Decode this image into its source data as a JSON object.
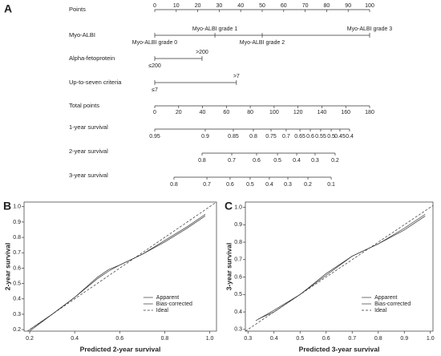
{
  "chart_data": [
    {
      "type": "nomogram",
      "panel": "A",
      "points_axis": {
        "name": "Points",
        "xlim": [
          0,
          100
        ],
        "ticks": [
          0,
          10,
          20,
          30,
          40,
          50,
          60,
          70,
          80,
          90,
          100
        ]
      },
      "variables": [
        {
          "name": "Myo-ALBI",
          "levels": [
            "Myo-ALBI grade 0",
            "Myo-ALBI grade 1",
            "Myo-ALBI grade 2",
            "Myo-ALBI grade 3"
          ],
          "points": [
            0,
            28,
            50,
            100
          ]
        },
        {
          "name": "Alpha-fetoprotein",
          "levels": [
            "≤200",
            ">200"
          ],
          "points": [
            0,
            22
          ]
        },
        {
          "name": "Up-to-seven criteria",
          "levels": [
            "≤7",
            ">7"
          ],
          "points": [
            0,
            38
          ]
        }
      ],
      "total_axis": {
        "name": "Total points",
        "xlim": [
          0,
          180
        ],
        "ticks": [
          0,
          20,
          40,
          60,
          80,
          100,
          120,
          140,
          160,
          180
        ]
      },
      "outcomes": [
        {
          "name": "1-year survival",
          "labels": [
            "0.95",
            "0.9",
            "0.85",
            "0.8",
            "0.75",
            "0.7",
            "0.65",
            "0.6",
            "0.55",
            "0.5",
            "0.45",
            "0.4"
          ],
          "total_points": [
            0,
            42.3,
            65.8,
            82.6,
            97.4,
            110.1,
            121.6,
            130.3,
            139.0,
            147.8,
            155.1,
            163.2
          ]
        },
        {
          "name": "2-year survival",
          "labels": [
            "0.8",
            "0.7",
            "0.6",
            "0.5",
            "0.4",
            "0.3",
            "0.2"
          ],
          "total_points": [
            39.6,
            64.5,
            85.3,
            102.8,
            118.9,
            134.3,
            151.1
          ]
        },
        {
          "name": "3-year survival",
          "labels": [
            "0.8",
            "0.7",
            "0.6",
            "0.5",
            "0.4",
            "0.3",
            "0.2",
            "0.1"
          ],
          "total_points": [
            16.1,
            43.7,
            63.1,
            79.9,
            96.0,
            111.5,
            128.3,
            147.8
          ]
        }
      ]
    },
    {
      "type": "line",
      "panel": "B",
      "xlabel": "Predicted 2-year survival",
      "ylabel": "2-year survival",
      "xlim": [
        0.175,
        1.03
      ],
      "ylim": [
        0.19,
        1.03
      ],
      "xticks": [
        0.2,
        0.4,
        0.6,
        0.8,
        {
          "value": 1,
          "label": "1.0"
        }
      ],
      "yticks": [
        0.2,
        0.3,
        0.4,
        0.5,
        0.6,
        0.7,
        0.8,
        0.9,
        {
          "value": 1,
          "label": "1.0"
        }
      ],
      "legend": "lower right",
      "series": [
        {
          "name": "Apparent",
          "color": "#a8a8a8",
          "linestyle": "solid",
          "x": [
            0.2,
            0.3,
            0.4,
            0.5,
            0.55,
            0.6,
            0.7,
            0.8,
            0.9,
            0.98
          ],
          "values": [
            0.2,
            0.3,
            0.41,
            0.53,
            0.58,
            0.62,
            0.69,
            0.78,
            0.87,
            0.95
          ]
        },
        {
          "name": "Bias-corrected",
          "color": "#444444",
          "linestyle": "solid",
          "x": [
            0.2,
            0.3,
            0.4,
            0.5,
            0.55,
            0.6,
            0.7,
            0.8,
            0.9,
            0.98
          ],
          "values": [
            0.19,
            0.3,
            0.41,
            0.54,
            0.59,
            0.62,
            0.69,
            0.77,
            0.86,
            0.94
          ]
        },
        {
          "name": "Ideal",
          "color": "#555555",
          "linestyle": "dashed",
          "x": [
            0.19,
            1.03
          ],
          "values": [
            0.19,
            1.03
          ]
        }
      ]
    },
    {
      "type": "line",
      "panel": "C",
      "xlabel": "Predicted 3-year survival",
      "ylabel": "3-year survival",
      "xlim": [
        0.29,
        1.01
      ],
      "ylim": [
        0.29,
        1.03
      ],
      "xticks": [
        0.3,
        0.4,
        0.5,
        0.6,
        0.7,
        0.8,
        0.9,
        {
          "value": 1,
          "label": "1.0"
        }
      ],
      "yticks": [
        0.3,
        0.4,
        0.5,
        0.6,
        0.7,
        0.8,
        0.9,
        {
          "value": 1,
          "label": "1.0"
        }
      ],
      "legend": "lower right",
      "series": [
        {
          "name": "Apparent",
          "color": "#a8a8a8",
          "linestyle": "solid",
          "x": [
            0.33,
            0.4,
            0.5,
            0.6,
            0.7,
            0.8,
            0.9,
            0.98
          ],
          "values": [
            0.35,
            0.41,
            0.5,
            0.62,
            0.72,
            0.79,
            0.87,
            0.95
          ]
        },
        {
          "name": "Bias-corrected",
          "color": "#444444",
          "linestyle": "solid",
          "x": [
            0.34,
            0.4,
            0.5,
            0.6,
            0.7,
            0.8,
            0.9,
            0.98
          ],
          "values": [
            0.36,
            0.4,
            0.5,
            0.61,
            0.72,
            0.79,
            0.88,
            0.96
          ]
        },
        {
          "name": "Ideal",
          "color": "#555555",
          "linestyle": "dashed",
          "x": [
            0.29,
            1.01
          ],
          "values": [
            0.29,
            1.01
          ]
        }
      ]
    }
  ]
}
